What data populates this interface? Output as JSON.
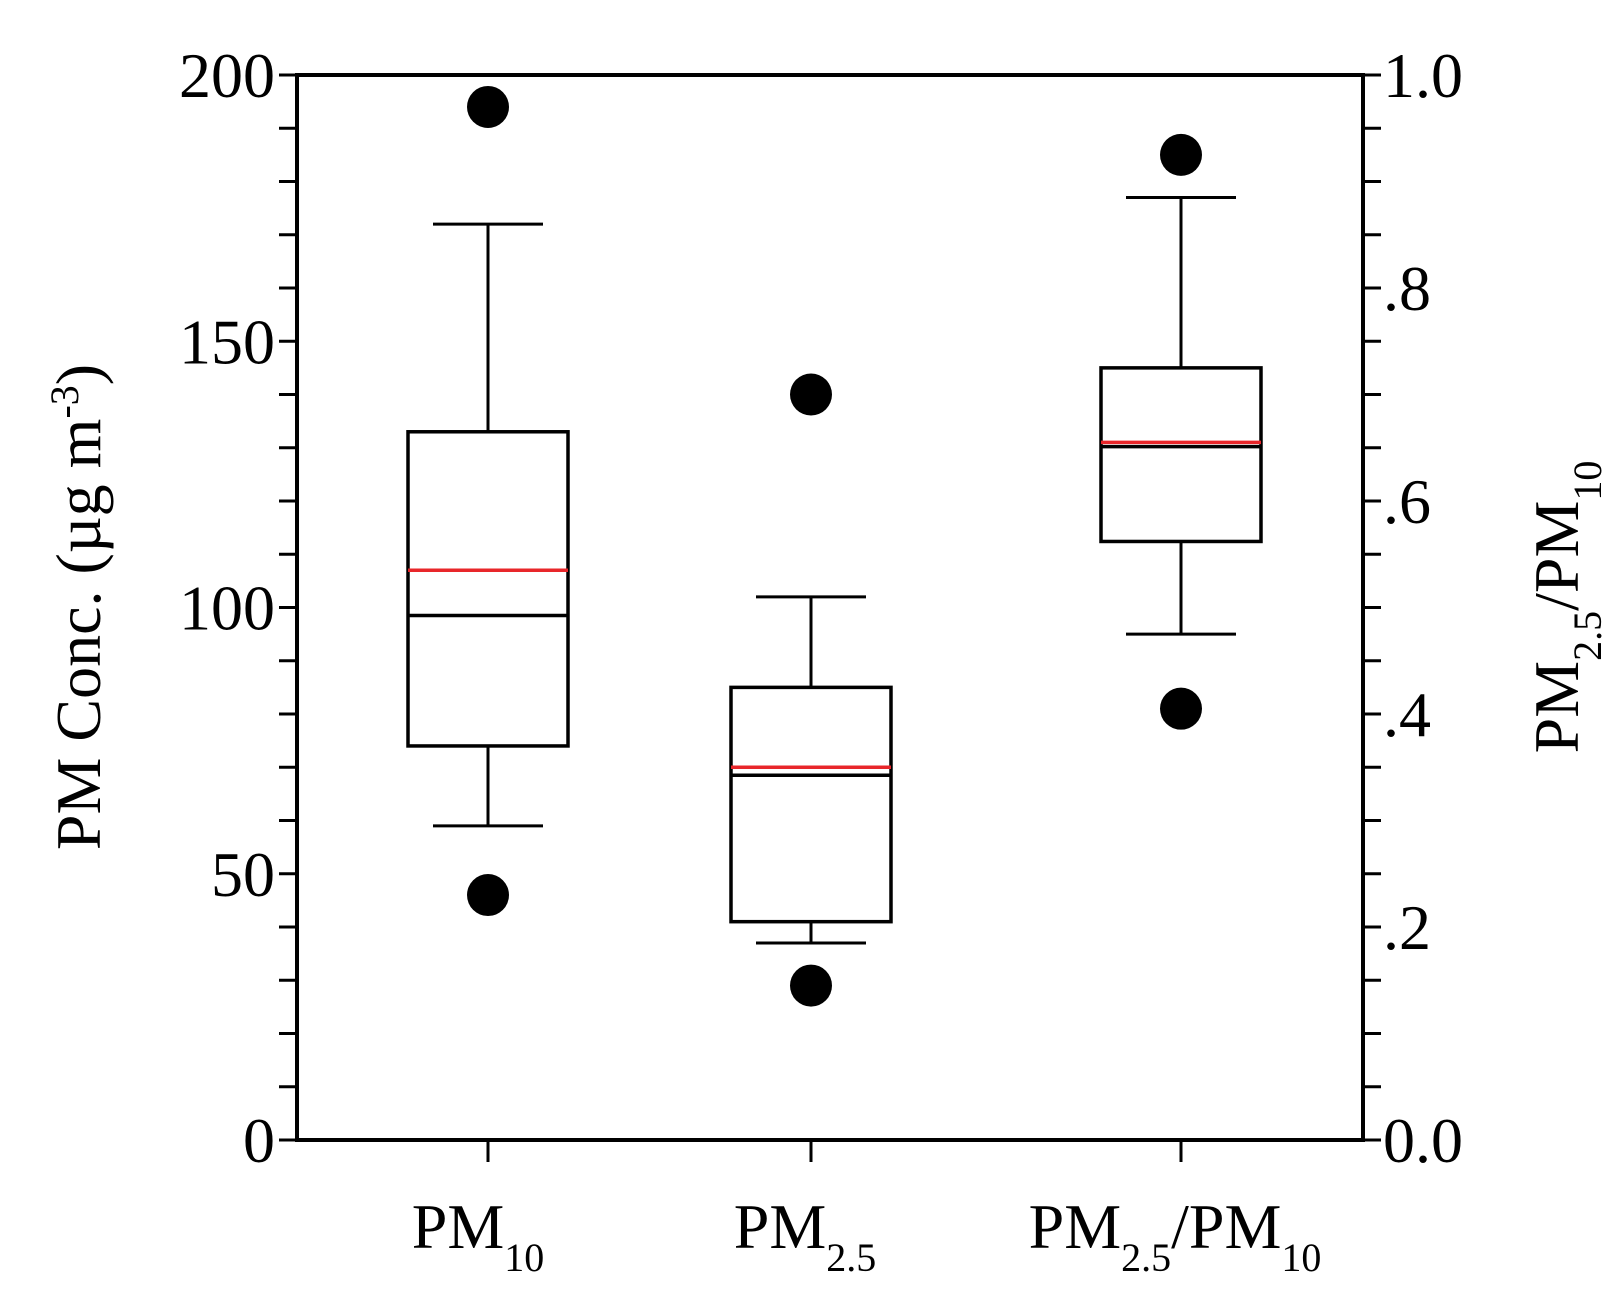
{
  "chart_data": {
    "type": "box",
    "categories": [
      "PM10",
      "PM2.5",
      "PM2.5/PM10"
    ],
    "category_labels": [
      {
        "main": "PM",
        "sub": "10"
      },
      {
        "main": "PM",
        "sub": "2.5"
      },
      {
        "main": "PM",
        "sub": "2.5",
        "slash": "/PM",
        "sub2": "10"
      }
    ],
    "left_axis": {
      "label_main": "PM Conc. (µg m",
      "label_sup": "-3",
      "label_close": ")",
      "ylim": [
        0,
        200
      ],
      "major_ticks": [
        0,
        50,
        100,
        150,
        200
      ],
      "tick_labels": [
        "0",
        "50",
        "100",
        "150",
        "200"
      ],
      "minor_step": 10
    },
    "right_axis": {
      "label_main": "PM",
      "label_sub": "2.5",
      "label_slash": "/PM",
      "label_sub2": "10",
      "ylim": [
        0,
        1.0
      ],
      "major_ticks": [
        0,
        0.2,
        0.4,
        0.6,
        0.8,
        1.0
      ],
      "tick_labels": [
        "0.0",
        ".2",
        ".4",
        ".6",
        ".8",
        "1.0"
      ],
      "minor_step": 0.05
    },
    "boxes": [
      {
        "name": "PM10",
        "axis": "left",
        "whisker_low": 59,
        "q1": 74,
        "median": 98.5,
        "mean": 107,
        "q3": 133,
        "whisker_high": 172,
        "outliers": [
          46,
          194
        ]
      },
      {
        "name": "PM2.5",
        "axis": "left",
        "whisker_low": 37,
        "q1": 41,
        "median": 68.5,
        "mean": 70,
        "q3": 85,
        "whisker_high": 102,
        "outliers": [
          29,
          140
        ]
      },
      {
        "name": "PM2.5/PM10",
        "axis": "right",
        "whisker_low": 0.475,
        "q1": 0.562,
        "median": 0.651,
        "mean": 0.655,
        "q3": 0.725,
        "whisker_high": 0.885,
        "outliers": [
          0.405,
          0.925
        ]
      }
    ],
    "colors": {
      "median": "#000000",
      "mean": "#e8262a",
      "box": "#000000",
      "outlier": "#000000"
    },
    "grid": false
  }
}
